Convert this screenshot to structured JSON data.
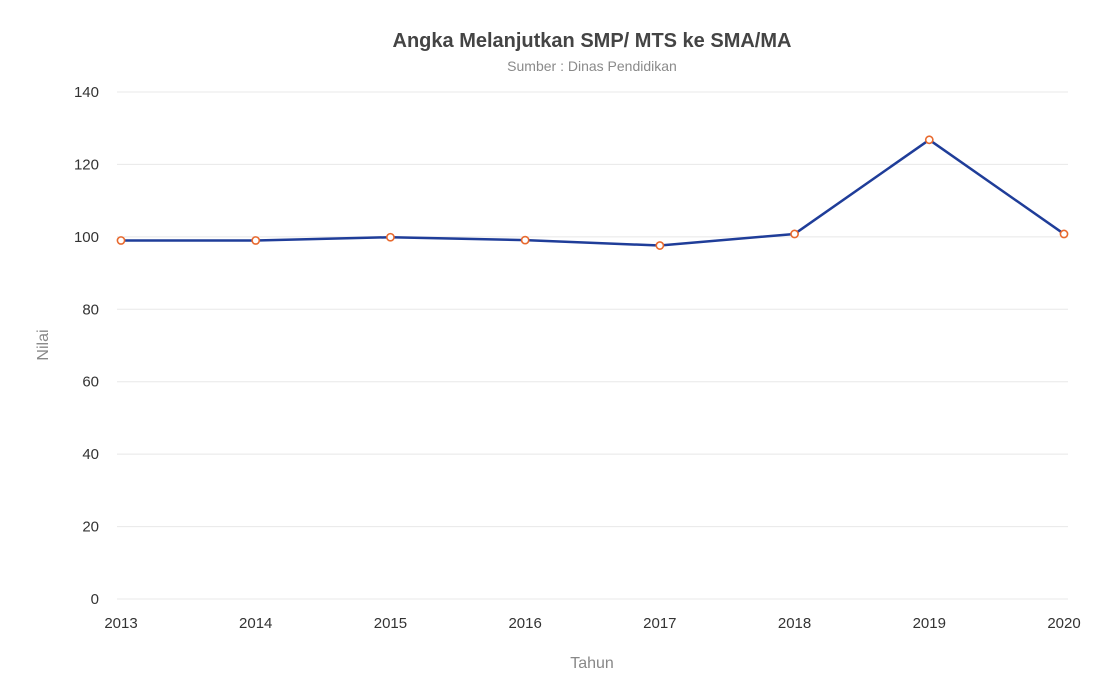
{
  "chart_data": {
    "type": "line",
    "title": "Angka Melanjutkan SMP/ MTS ke SMA/MA",
    "subtitle": "Sumber : Dinas Pendidikan",
    "xlabel": "Tahun",
    "ylabel": "Nilai",
    "categories": [
      "2013",
      "2014",
      "2015",
      "2016",
      "2017",
      "2018",
      "2019",
      "2020"
    ],
    "yticks": [
      "0",
      "20",
      "40",
      "60",
      "80",
      "100",
      "120",
      "140"
    ],
    "ylim": [
      0,
      140
    ],
    "grid": true,
    "series": [
      {
        "values": [
          99.0,
          99.0,
          99.9,
          99.1,
          97.6,
          100.8,
          126.8,
          100.8
        ]
      }
    ],
    "colors": {
      "line": "#1f3d99",
      "marker": "#e8692e",
      "marker_fill": "#ffffff"
    }
  }
}
